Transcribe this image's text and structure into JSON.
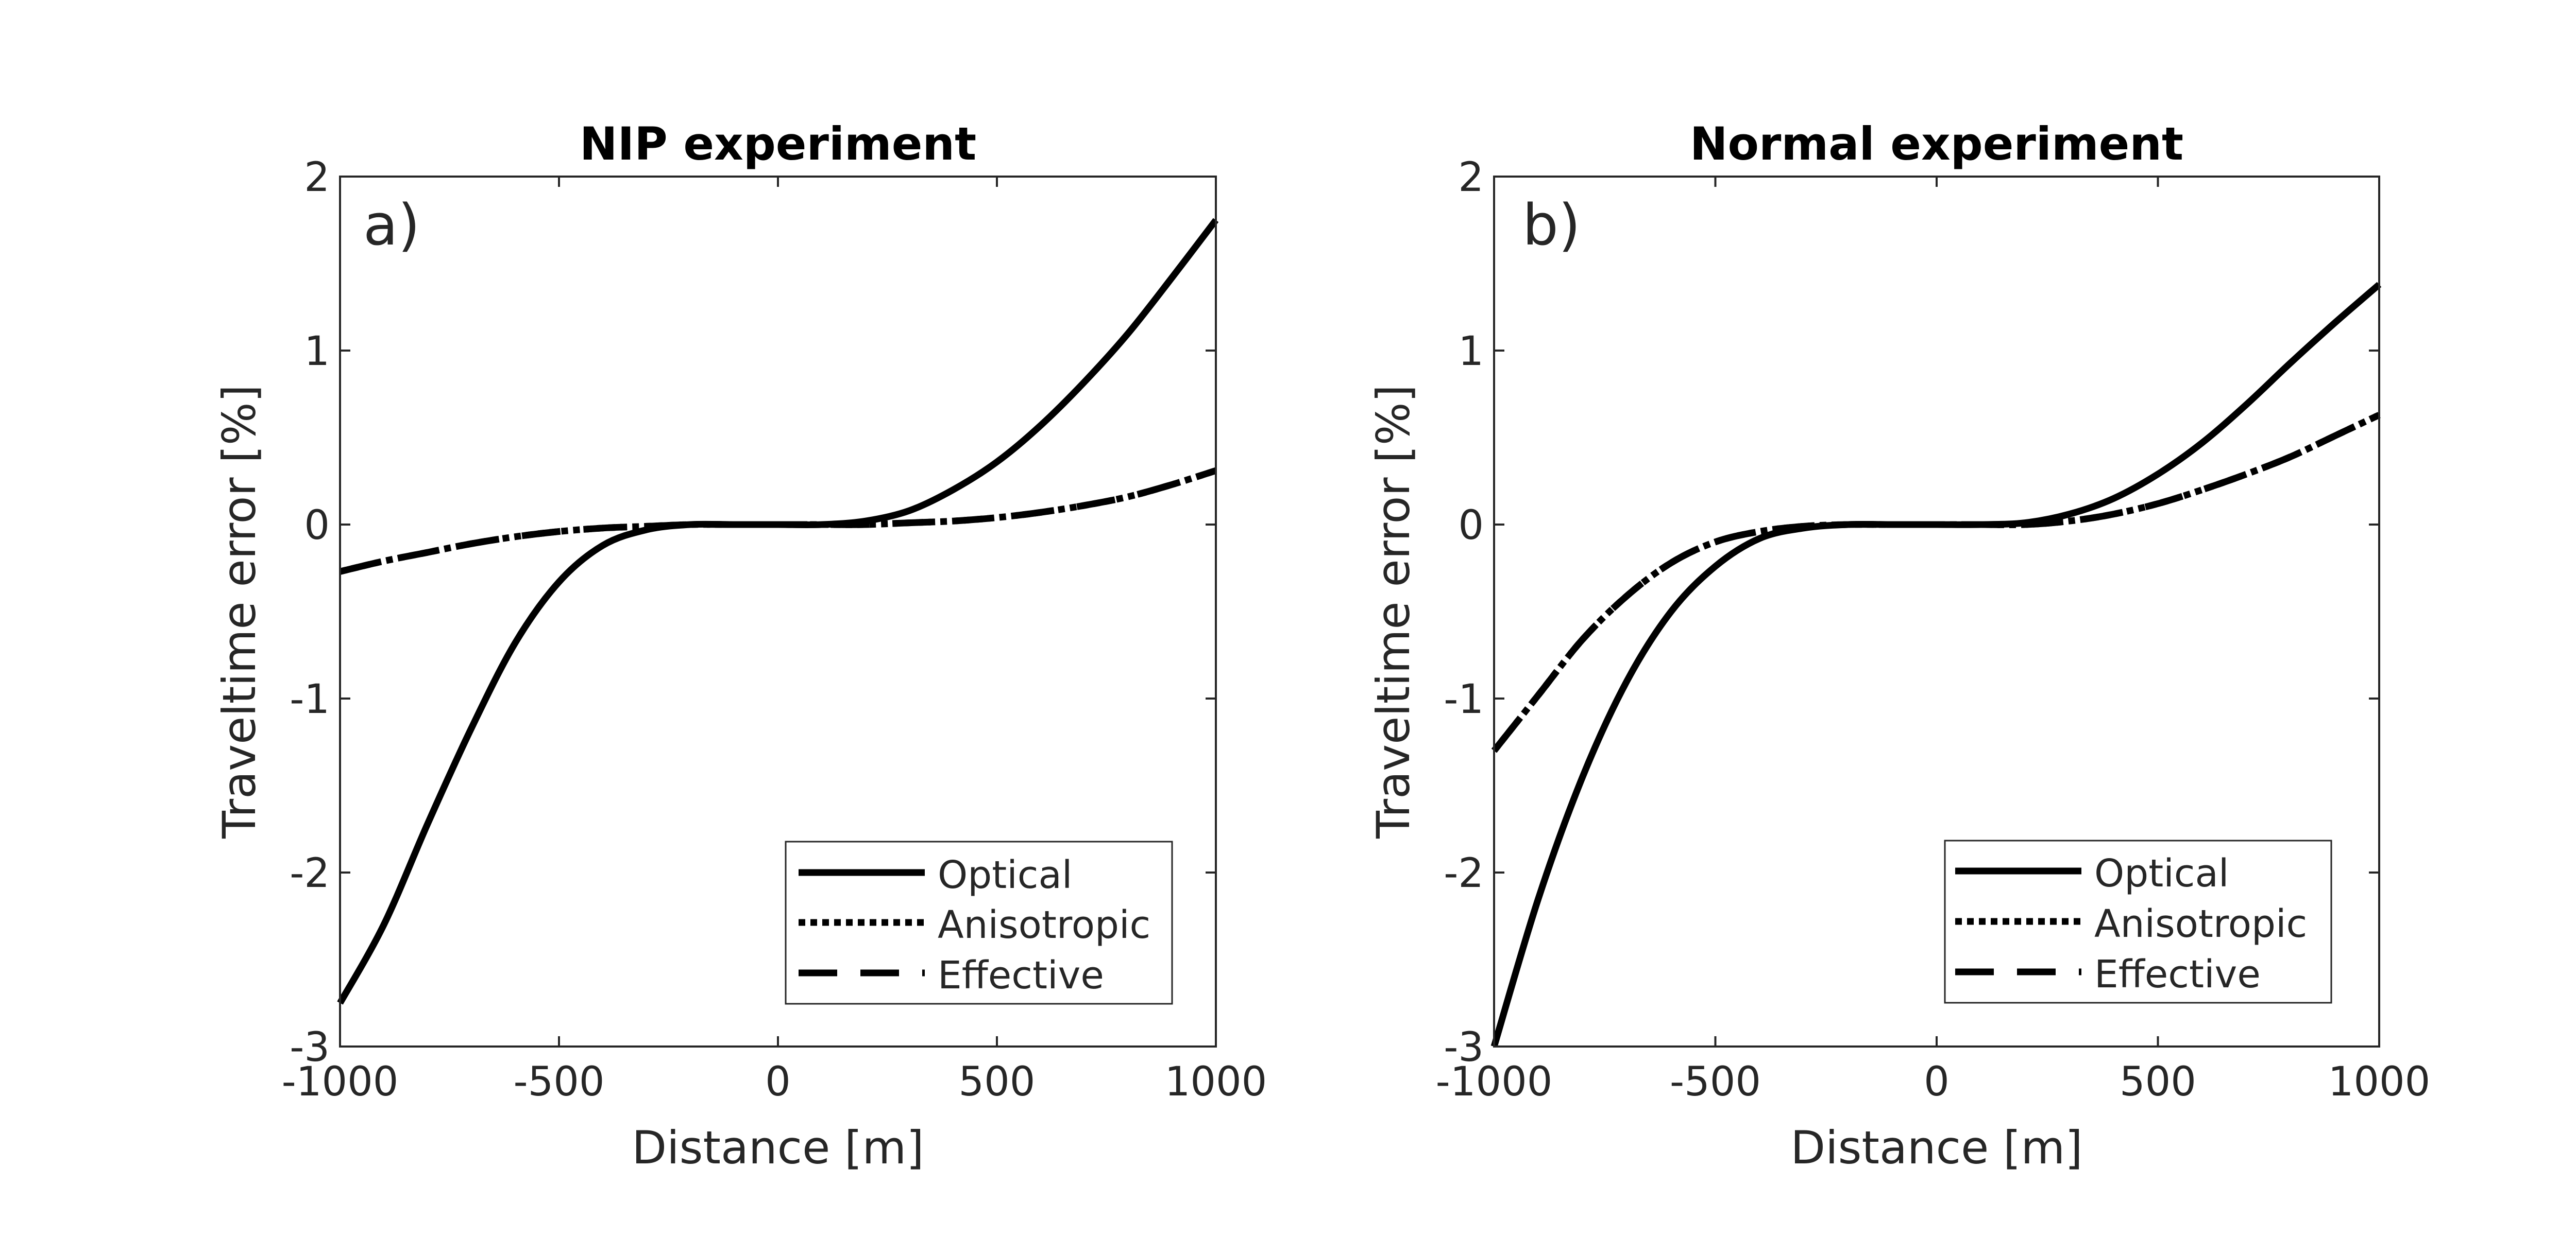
{
  "chart_data": [
    {
      "type": "line",
      "title": "NIP experiment",
      "panel_label": "a)",
      "xlabel": "Distance [m]",
      "ylabel": "Traveltime error [%]",
      "xlim": [
        -1000,
        1000
      ],
      "ylim": [
        -3,
        2
      ],
      "xticks": [
        -1000,
        -500,
        0,
        500,
        1000
      ],
      "yticks": [
        -3,
        -2,
        -1,
        0,
        1,
        2
      ],
      "xtick_labels": [
        "-1000",
        "-500",
        "0",
        "500",
        "1000"
      ],
      "ytick_labels": [
        "-3",
        "-2",
        "-1",
        "0",
        "1",
        "2"
      ],
      "grid": false,
      "legend_position": "bottom-right",
      "legend": [
        "Optical",
        "Anisotropic",
        "Effective"
      ],
      "x": [
        -1000,
        -900,
        -800,
        -700,
        -600,
        -500,
        -400,
        -300,
        -200,
        -100,
        0,
        100,
        200,
        300,
        400,
        500,
        600,
        700,
        800,
        900,
        1000
      ],
      "series": [
        {
          "name": "Optical",
          "style": "solid",
          "values": [
            -2.75,
            -2.3,
            -1.72,
            -1.17,
            -0.68,
            -0.33,
            -0.12,
            -0.03,
            0,
            0,
            0,
            0,
            0.02,
            0.08,
            0.2,
            0.36,
            0.57,
            0.82,
            1.1,
            1.42,
            1.75
          ]
        },
        {
          "name": "Anisotropic",
          "style": "dotted",
          "values": [
            -0.27,
            -0.21,
            -0.16,
            -0.11,
            -0.07,
            -0.04,
            -0.02,
            -0.01,
            0,
            0,
            0,
            0,
            0,
            0.01,
            0.02,
            0.04,
            0.07,
            0.11,
            0.16,
            0.23,
            0.31
          ]
        },
        {
          "name": "Effective",
          "style": "dashed",
          "values": [
            -0.27,
            -0.21,
            -0.16,
            -0.11,
            -0.07,
            -0.04,
            -0.02,
            -0.01,
            0,
            0,
            0,
            0,
            0,
            0.01,
            0.02,
            0.04,
            0.07,
            0.11,
            0.16,
            0.23,
            0.31
          ]
        }
      ]
    },
    {
      "type": "line",
      "title": "Normal experiment",
      "panel_label": "b)",
      "xlabel": "Distance [m]",
      "ylabel": "Traveltime error [%]",
      "xlim": [
        -1000,
        1000
      ],
      "ylim": [
        -3,
        2
      ],
      "xticks": [
        -1000,
        -500,
        0,
        500,
        1000
      ],
      "yticks": [
        -3,
        -2,
        -1,
        0,
        1,
        2
      ],
      "xtick_labels": [
        "-1000",
        "-500",
        "0",
        "500",
        "1000"
      ],
      "ytick_labels": [
        "-3",
        "-2",
        "-1",
        "0",
        "1",
        "2"
      ],
      "grid": false,
      "legend_position": "bottom-right",
      "legend": [
        "Optical",
        "Anisotropic",
        "Effective"
      ],
      "x": [
        -1000,
        -900,
        -800,
        -700,
        -600,
        -500,
        -400,
        -300,
        -200,
        -100,
        0,
        100,
        200,
        300,
        400,
        500,
        600,
        700,
        800,
        900,
        1000
      ],
      "series": [
        {
          "name": "Optical",
          "style": "solid",
          "values": [
            -3.0,
            -2.15,
            -1.45,
            -0.9,
            -0.5,
            -0.24,
            -0.08,
            -0.02,
            0,
            0,
            0,
            0,
            0.01,
            0.06,
            0.15,
            0.29,
            0.47,
            0.69,
            0.93,
            1.16,
            1.38
          ]
        },
        {
          "name": "Anisotropic",
          "style": "dotted",
          "values": [
            -1.3,
            -0.98,
            -0.66,
            -0.41,
            -0.22,
            -0.1,
            -0.04,
            -0.01,
            0,
            0,
            0,
            0,
            0,
            0.02,
            0.06,
            0.12,
            0.2,
            0.29,
            0.39,
            0.51,
            0.63
          ]
        },
        {
          "name": "Effective",
          "style": "dashed",
          "values": [
            -1.3,
            -0.98,
            -0.66,
            -0.41,
            -0.22,
            -0.1,
            -0.04,
            -0.01,
            0,
            0,
            0,
            0,
            0,
            0.02,
            0.06,
            0.12,
            0.2,
            0.29,
            0.39,
            0.51,
            0.63
          ]
        }
      ]
    }
  ]
}
